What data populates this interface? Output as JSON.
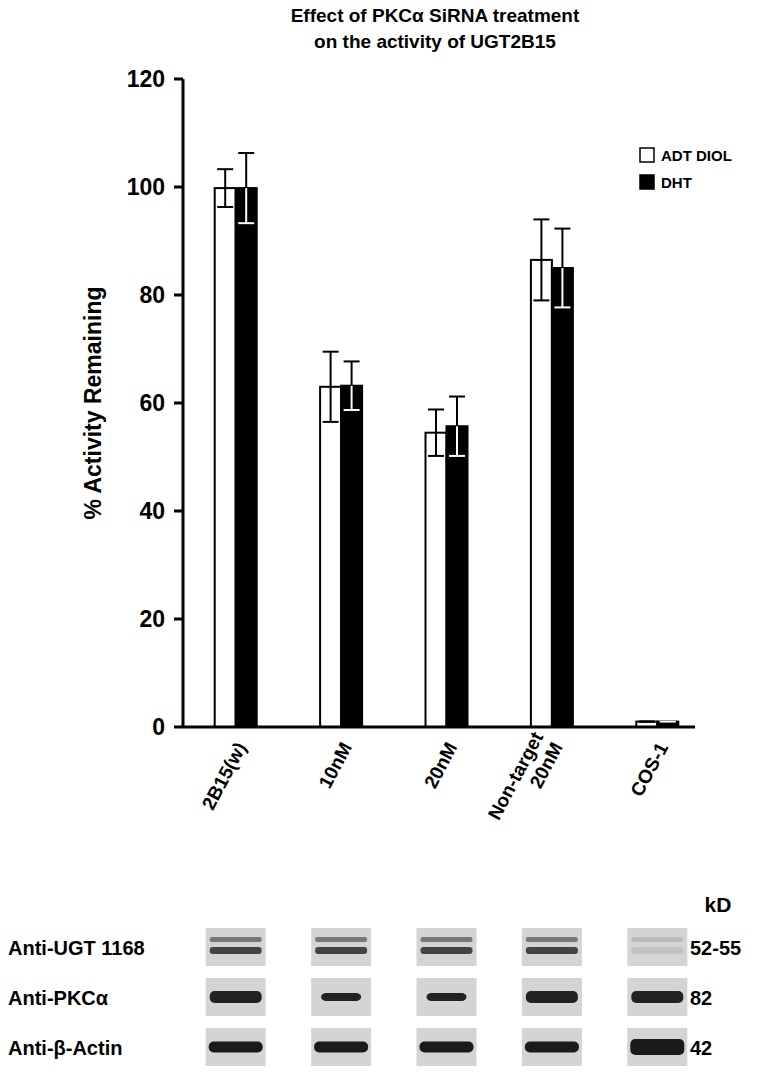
{
  "chart_data": {
    "type": "bar",
    "title": "Effect of PKCα SiRNA treatment\non the activity of UGT2B15",
    "y_label": "% Activity Remaining",
    "categories": [
      "2B15(w)",
      "10nM",
      "20nM",
      "Non-target\n20nM",
      "COS-1"
    ],
    "series": [
      {
        "name": "ADT DIOL",
        "color": "#ffffff",
        "values": [
          99.8,
          63.0,
          54.5,
          86.5,
          1.0
        ],
        "errors": [
          3.5,
          6.5,
          4.3,
          7.5,
          0
        ]
      },
      {
        "name": "DHT",
        "color": "#000000",
        "values": [
          99.8,
          63.2,
          55.7,
          85.0,
          1.0
        ],
        "errors": [
          6.5,
          4.5,
          5.5,
          7.3,
          0
        ]
      }
    ],
    "ylim": [
      0,
      120
    ],
    "yticks": [
      0,
      20,
      40,
      60,
      80,
      100,
      120
    ],
    "grid": false,
    "legend": "top-right"
  },
  "blots": {
    "unit": "kD",
    "rows": [
      {
        "label": "Anti-UGT 1168",
        "kd": "52-55"
      },
      {
        "label": "Anti-PKCα",
        "kd": 82
      },
      {
        "label": "Anti-β-Actin",
        "kd": 42
      }
    ]
  }
}
